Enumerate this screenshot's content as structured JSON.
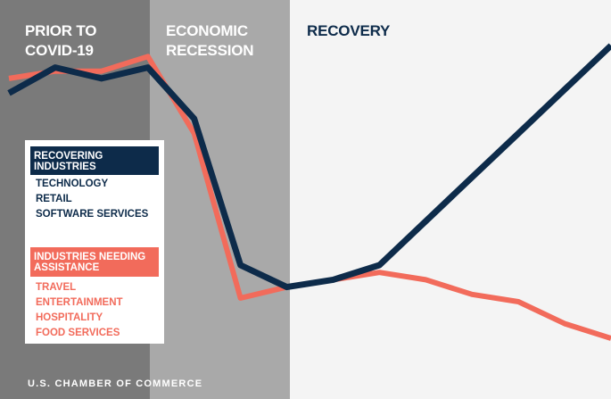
{
  "phases": [
    {
      "label": "PRIOR TO\nCOVID-19"
    },
    {
      "label": "ECONOMIC\nRECESSION"
    },
    {
      "label": "RECOVERY"
    }
  ],
  "legend": {
    "recovering": {
      "header": "RECOVERING\nINDUSTRIES",
      "items": [
        "TECHNOLOGY",
        "RETAIL",
        "SOFTWARE SERVICES"
      ],
      "color": "#0d2b4a"
    },
    "needing": {
      "header": "INDUSTRIES NEEDING\nASSISTANCE",
      "items": [
        "TRAVEL",
        "ENTERTAINMENT",
        "HOSPITALITY",
        "FOOD SERVICES"
      ],
      "color": "#f26b5b"
    }
  },
  "footer": "U.S. CHAMBER OF COMMERCE",
  "colors": {
    "prior_bg": "#7a7a7a",
    "recession_bg": "#a9a9a9",
    "recovery_bg": "#f4f4f4"
  },
  "chart_data": {
    "type": "line",
    "title": "",
    "xlabel": "",
    "ylabel": "",
    "x": [
      0,
      1,
      2,
      3,
      4,
      5,
      6,
      7,
      8,
      9,
      10,
      11,
      12,
      13
    ],
    "ylim": [
      0,
      100
    ],
    "grid": false,
    "legend_position": "left",
    "series": [
      {
        "legend_ref": "recovering",
        "color": "#0d2b4a",
        "values": [
          77,
          84,
          81,
          84,
          70,
          30,
          24,
          26,
          30,
          42,
          54,
          66,
          78,
          90
        ]
      },
      {
        "legend_ref": "needing",
        "color": "#f26b5b",
        "values": [
          81,
          83,
          83,
          87,
          66,
          21,
          24,
          26,
          28,
          26,
          22,
          20,
          14,
          10
        ]
      }
    ]
  }
}
